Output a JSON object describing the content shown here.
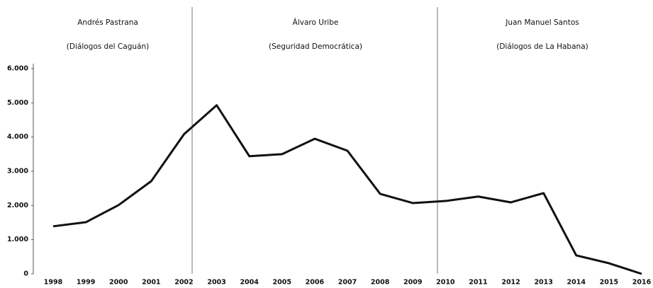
{
  "chart_data": {
    "type": "line",
    "periods": [
      {
        "name": "Andrés Pastrana",
        "subtitle": "(Diálogos del Caguán)"
      },
      {
        "name": "Álvaro Uribe",
        "subtitle": "(Seguridad Democrática)"
      },
      {
        "name": "Juan Manuel Santos",
        "subtitle": "(Diálogos de La Habana)"
      }
    ],
    "categories": [
      "1998",
      "1999",
      "2000",
      "2001",
      "2002",
      "2003",
      "2004",
      "2005",
      "2006",
      "2007",
      "2008",
      "2009",
      "2010",
      "2011",
      "2012",
      "2013",
      "2014",
      "2015",
      "2016"
    ],
    "series": [
      {
        "color": "#111111",
        "values": [
          1390,
          1510,
          2010,
          2710,
          4080,
          4930,
          3440,
          3500,
          3950,
          3600,
          2340,
          2070,
          2130,
          2260,
          2090,
          2360,
          540,
          310,
          0
        ]
      }
    ],
    "ylim": [
      0,
      6000
    ],
    "yticks": [
      {
        "value": 0,
        "label": "0"
      },
      {
        "value": 1000,
        "label": "1.000"
      },
      {
        "value": 2000,
        "label": "2.000"
      },
      {
        "value": 3000,
        "label": "3.000"
      },
      {
        "value": 4000,
        "label": "4.000"
      },
      {
        "value": 5000,
        "label": "5.000"
      },
      {
        "value": 6000,
        "label": "6.000"
      }
    ],
    "grid": false
  }
}
